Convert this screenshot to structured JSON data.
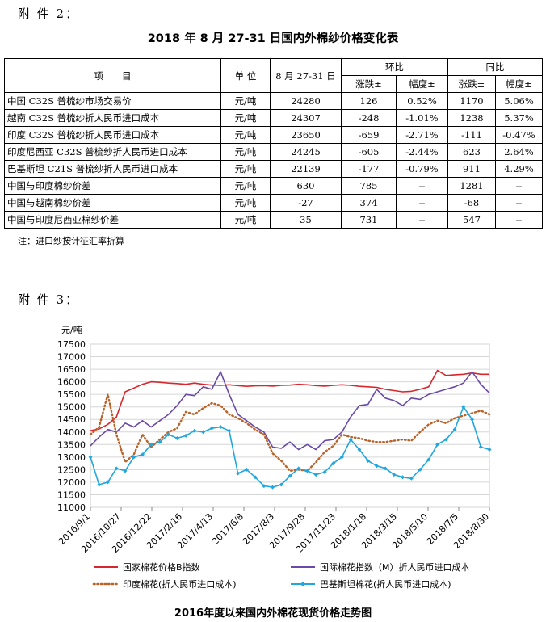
{
  "attachment2_label": "附 件 2：",
  "table_title": "2018 年 8 月 27-31 日国内外棉纱价格变化表",
  "table": {
    "head": {
      "item": "项　　目",
      "unit": "单 位",
      "period": "8 月 27-31 日",
      "mom": "环比",
      "yoy": "同比",
      "change": "涨跌±",
      "rate": "幅度±"
    },
    "rows": [
      {
        "name": "中国 C32S 普梳纱市场交易价",
        "unit": "元/吨",
        "price": "24280",
        "mom_change": "126",
        "mom_rate": "0.52%",
        "yoy_change": "1170",
        "yoy_rate": "5.06%"
      },
      {
        "name": "越南 C32S 普梳纱折人民币进口成本",
        "unit": "元/吨",
        "price": "24307",
        "mom_change": "-248",
        "mom_rate": "-1.01%",
        "yoy_change": "1238",
        "yoy_rate": "5.37%"
      },
      {
        "name": "印度 C32S 普梳纱折人民币进口成本",
        "unit": "元/吨",
        "price": "23650",
        "mom_change": "-659",
        "mom_rate": "-2.71%",
        "yoy_change": "-111",
        "yoy_rate": "-0.47%"
      },
      {
        "name": "印度尼西亚 C32S 普梳纱折人民币进口成本",
        "unit": "元/吨",
        "price": "24245",
        "mom_change": "-605",
        "mom_rate": "-2.44%",
        "yoy_change": "623",
        "yoy_rate": "2.64%"
      },
      {
        "name": "巴基斯坦 C21S 普梳纱折人民币进口成本",
        "unit": "元/吨",
        "price": "22139",
        "mom_change": "-177",
        "mom_rate": "-0.79%",
        "yoy_change": "911",
        "yoy_rate": "4.29%"
      },
      {
        "name": "中国与印度棉纱价差",
        "unit": "元/吨",
        "price": "630",
        "mom_change": "785",
        "mom_rate": "--",
        "yoy_change": "1281",
        "yoy_rate": "--"
      },
      {
        "name": "中国与越南棉纱价差",
        "unit": "元/吨",
        "price": "-27",
        "mom_change": "374",
        "mom_rate": "--",
        "yoy_change": "-68",
        "yoy_rate": "--"
      },
      {
        "name": "中国与印度尼西亚棉纱价差",
        "unit": "元/吨",
        "price": "35",
        "mom_change": "731",
        "mom_rate": "--",
        "yoy_change": "547",
        "yoy_rate": "--"
      }
    ]
  },
  "note": "注：进口纱按计征汇率折算",
  "attachment3_label": "附 件 3：",
  "chart_caption": "2016年度以来国内外棉花现货价格走势图",
  "chart_data": {
    "type": "line",
    "ylabel": "元/吨",
    "ylim": [
      11000,
      17500
    ],
    "yticks": [
      11000,
      11500,
      12000,
      12500,
      13000,
      13500,
      14000,
      14500,
      15000,
      15500,
      16000,
      16500,
      17000,
      17500
    ],
    "x_ticks": [
      "2016/9/1",
      "2016/10/27",
      "2016/12/22",
      "2017/2/16",
      "2017/4/13",
      "2017/6/8",
      "2017/8/3",
      "2017/9/28",
      "2017/11/23",
      "2018/1/18",
      "2018/3/15",
      "2018/5/10",
      "2018/7/5",
      "2018/8/30"
    ],
    "grid": "horizontal",
    "legend_position": "bottom",
    "series": [
      {
        "name": "国家棉花价格B指数",
        "color": "#d9262c",
        "style": "solid",
        "values": [
          14050,
          14120,
          14300,
          14600,
          15600,
          15750,
          15900,
          16000,
          15980,
          15950,
          15930,
          15900,
          15950,
          15900,
          15870,
          15860,
          15880,
          15850,
          15820,
          15840,
          15850,
          15830,
          15860,
          15870,
          15900,
          15880,
          15850,
          15830,
          15860,
          15880,
          15860,
          15820,
          15800,
          15780,
          15700,
          15650,
          15600,
          15620,
          15700,
          15800,
          16450,
          16250,
          16280,
          16300,
          16350,
          16300,
          16300
        ]
      },
      {
        "name": "国际棉花指数（M）折人民币进口成本",
        "color": "#6a4aa6",
        "style": "solid",
        "values": [
          13450,
          13800,
          14100,
          14000,
          14350,
          14200,
          14450,
          14200,
          14450,
          14700,
          15050,
          15500,
          15450,
          15800,
          15700,
          16400,
          15500,
          14700,
          14450,
          14200,
          14000,
          13400,
          13350,
          13600,
          13300,
          13500,
          13300,
          13650,
          13700,
          14000,
          14600,
          15050,
          15100,
          15700,
          15350,
          15250,
          15050,
          15350,
          15300,
          15500,
          15600,
          15700,
          15800,
          15950,
          16400,
          15900,
          15550
        ]
      },
      {
        "name": "印度棉花(折人民币进口成本)",
        "color": "#b8632a",
        "style": "dotted",
        "values": [
          13900,
          14200,
          15500,
          13900,
          12800,
          13100,
          13900,
          13400,
          13700,
          14000,
          14150,
          14800,
          14700,
          14950,
          15150,
          15050,
          14700,
          14550,
          14350,
          14100,
          13900,
          13150,
          12850,
          12450,
          12500,
          12450,
          12800,
          13200,
          13450,
          13900,
          13800,
          13750,
          13650,
          13600,
          13600,
          13650,
          13700,
          13650,
          14000,
          14300,
          14450,
          14350,
          14550,
          14650,
          14750,
          14850,
          14700
        ]
      },
      {
        "name": "巴基斯坦棉花(折人民币进口成本)",
        "color": "#21a7e0",
        "style": "marker",
        "values": [
          13000,
          11900,
          12000,
          12550,
          12450,
          13000,
          13100,
          13500,
          13600,
          13900,
          13750,
          13850,
          14050,
          14000,
          14150,
          14200,
          14050,
          12350,
          12500,
          12200,
          11850,
          11800,
          11900,
          12250,
          12550,
          12450,
          12300,
          12400,
          12750,
          13000,
          13700,
          13300,
          12850,
          12650,
          12550,
          12300,
          12200,
          12150,
          12500,
          12900,
          13500,
          13700,
          14100,
          15000,
          14500,
          13400,
          13300
        ]
      }
    ]
  }
}
